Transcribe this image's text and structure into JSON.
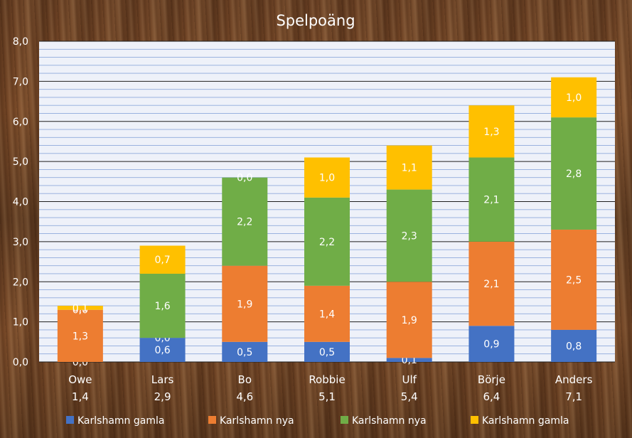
{
  "chart_data": {
    "type": "bar",
    "stacked": true,
    "title": "Spelpoäng",
    "categories": [
      "Owe",
      "Lars",
      "Bo",
      "Robbie",
      "Ulf",
      "Börje",
      "Anders"
    ],
    "totals": [
      "1,4",
      "2,9",
      "4,6",
      "5,1",
      "5,4",
      "6,4",
      "7,1"
    ],
    "series": [
      {
        "name": "Karlshamn gamla",
        "color": "#4472C4",
        "values": [
          0.0,
          0.6,
          0.5,
          0.5,
          0.1,
          0.9,
          0.8
        ]
      },
      {
        "name": "Karlshamn nya",
        "color": "#ED7D31",
        "values": [
          1.3,
          0.0,
          1.9,
          1.4,
          1.9,
          2.1,
          2.5
        ]
      },
      {
        "name": "Karlshamn nya",
        "color": "#70AD47",
        "values": [
          0.0,
          1.6,
          2.2,
          2.2,
          2.3,
          2.1,
          2.8
        ]
      },
      {
        "name": "Karlshamn gamla",
        "color": "#FFC000",
        "values": [
          0.1,
          0.7,
          0.0,
          1.0,
          1.1,
          1.3,
          1.0
        ]
      }
    ],
    "ylim": [
      0,
      8
    ],
    "yticks": [
      "0,0",
      "1,0",
      "2,0",
      "3,0",
      "4,0",
      "5,0",
      "6,0",
      "7,0",
      "8,0"
    ],
    "grid": true,
    "legend_position": "bottom"
  },
  "colors": {
    "plot_background": "#EEF1F9",
    "minor_gridline": "#8EA9DB",
    "major_gridline": "#1F1F1F",
    "text": "#FFFFFF"
  }
}
